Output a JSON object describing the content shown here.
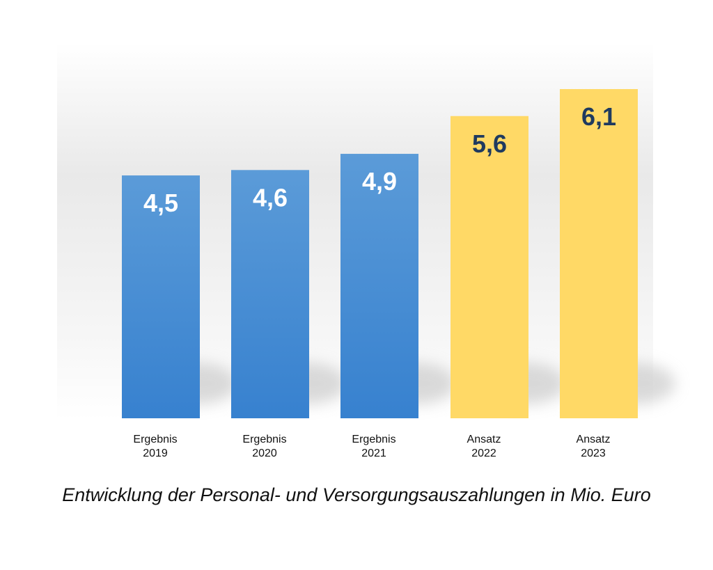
{
  "chart_data": {
    "type": "bar",
    "title": "Entwicklung der Personal- und Versorgungsauszahlungen in Mio. Euro",
    "categories": [
      [
        "Ergebnis",
        "2019"
      ],
      [
        "Ergebnis",
        "2020"
      ],
      [
        "Ergebnis",
        "2021"
      ],
      [
        "Ansatz",
        "2022"
      ],
      [
        "Ansatz",
        "2023"
      ]
    ],
    "values": [
      4.5,
      4.6,
      4.9,
      5.6,
      6.1
    ],
    "data_labels": [
      "4,5",
      "4,6",
      "4,9",
      "5,6",
      "6,1"
    ],
    "bar_colors": [
      "#3a85d0",
      "#3a85d0",
      "#3a85d0",
      "#ffd966",
      "#ffd966"
    ],
    "label_colors": [
      "#ffffff",
      "#ffffff",
      "#ffffff",
      "#1f3a5f",
      "#1f3a5f"
    ],
    "ylim": [
      0,
      6.1
    ],
    "grid": false,
    "legend": "none"
  }
}
